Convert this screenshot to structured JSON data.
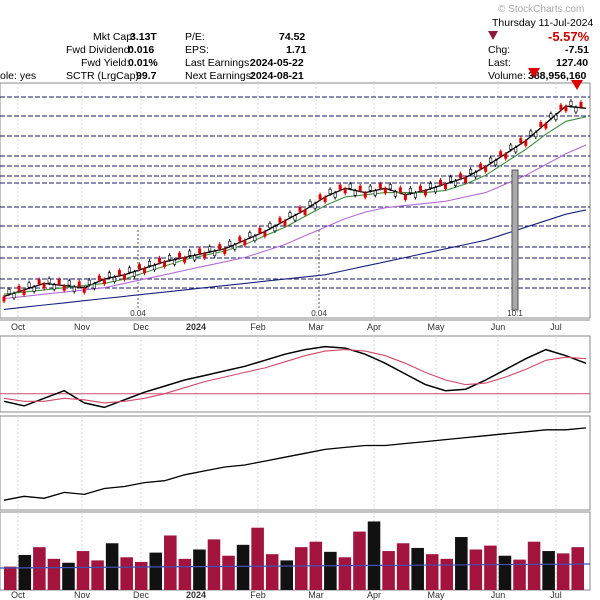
{
  "header": {
    "watermark": "© StockCharts.com",
    "date_line": "Thursday  11-Jul-2024",
    "left_labels": [
      {
        "label": "Mkt Cap:",
        "value": "3.13T"
      },
      {
        "label": "Fwd Dividend:",
        "value": "0.016"
      },
      {
        "label": "Fwd Yield:",
        "value": "0.01%"
      },
      {
        "label": "SCTR (LrgCap):",
        "value": "99.7"
      }
    ],
    "mid_labels": [
      {
        "label": "P/E:",
        "value": "74.52"
      },
      {
        "label": "EPS:",
        "value": "1.71"
      },
      {
        "label": "Last Earnings:",
        "value": "2024-05-22"
      },
      {
        "label": "Next Earnings:",
        "value": "2024-08-21"
      }
    ],
    "optionable_fragment": "ole: yes",
    "right_labels": [
      {
        "label": "",
        "value": "-5.57%"
      },
      {
        "label": "Chg:",
        "value": "-7.51"
      },
      {
        "label": "Last:",
        "value": "127.40"
      },
      {
        "label": "Volume:",
        "value": "388,956,160"
      }
    ],
    "change_color": "#cc0000"
  },
  "chart_data": {
    "type": "line",
    "title": "",
    "xlabel": "",
    "ylabel": "",
    "x_ticks": [
      "Oct",
      "Nov",
      "Dec",
      "2024",
      "Feb",
      "Mar",
      "Apr",
      "May",
      "Jun",
      "Jul"
    ],
    "dividend_markers": [
      "0.04",
      "0.04"
    ],
    "split_marker": "10:1",
    "grid": true,
    "series": [
      {
        "values": [
          40,
          43,
          46,
          45,
          44,
          48,
          50,
          53,
          56,
          58,
          60,
          62,
          66,
          70,
          75,
          80,
          86,
          90,
          88,
          90,
          87,
          89,
          92,
          95,
          100,
          106,
          112,
          120,
          128,
          127
        ]
      },
      {
        "values": [
          41,
          42,
          43,
          44,
          45,
          46,
          48,
          51,
          54,
          57,
          59,
          61,
          64,
          68,
          72,
          77,
          82,
          86,
          87,
          88,
          88,
          88,
          89,
          92,
          96,
          102,
          108,
          115,
          121,
          123
        ]
      },
      {
        "values": [
          39,
          40,
          41,
          42,
          43,
          44,
          46,
          48,
          50,
          52,
          54,
          56,
          58,
          61,
          64,
          68,
          72,
          76,
          79,
          81,
          82,
          83,
          84,
          86,
          88,
          92,
          96,
          101,
          106,
          110
        ]
      },
      {
        "values": [
          34,
          35,
          36,
          37,
          38,
          39,
          40,
          41,
          42,
          43,
          44,
          45,
          46,
          47,
          48,
          49,
          50,
          52,
          54,
          56,
          58,
          60,
          62,
          64,
          66,
          69,
          72,
          75,
          78,
          80
        ]
      }
    ],
    "macd": {
      "line": [
        -0.5,
        -0.8,
        -0.3,
        0.2,
        -0.6,
        -0.9,
        -0.4,
        0.1,
        0.5,
        0.9,
        1.2,
        1.5,
        1.8,
        2.2,
        2.6,
        2.9,
        3.1,
        3.0,
        2.6,
        2.0,
        1.3,
        0.6,
        0.2,
        0.3,
        0.9,
        1.6,
        2.3,
        2.9,
        2.5,
        2.0
      ],
      "signal": [
        -0.3,
        -0.5,
        -0.5,
        -0.3,
        -0.4,
        -0.6,
        -0.5,
        -0.3,
        0.0,
        0.4,
        0.8,
        1.1,
        1.4,
        1.7,
        2.1,
        2.5,
        2.8,
        2.9,
        2.8,
        2.5,
        2.0,
        1.4,
        0.9,
        0.6,
        0.7,
        1.1,
        1.6,
        2.2,
        2.4,
        2.3
      ]
    },
    "obv": [
      10,
      12,
      11,
      14,
      13,
      16,
      17,
      19,
      20,
      23,
      25,
      27,
      28,
      30,
      32,
      34,
      36,
      37,
      38,
      38,
      39,
      40,
      41,
      42,
      43,
      44,
      45,
      46,
      46,
      47
    ],
    "volume": [
      30,
      45,
      55,
      40,
      35,
      50,
      38,
      60,
      42,
      36,
      48,
      70,
      40,
      52,
      65,
      44,
      58,
      80,
      46,
      38,
      55,
      62,
      49,
      42,
      75,
      88,
      50,
      60,
      54,
      46,
      40,
      68,
      52,
      57,
      44,
      39,
      62,
      50,
      47,
      55
    ]
  },
  "colors": {
    "price_line": "#000000",
    "ema_green": "#3e8e3e",
    "sma_purple": "#b36bd6",
    "sma_navy": "#1a237e",
    "macd_line": "#000000",
    "macd_signal": "#d04a6a",
    "hline_navy": "#1a1a6e",
    "volume_bar": "#a2133e",
    "arrow_red": "#dd0000"
  }
}
